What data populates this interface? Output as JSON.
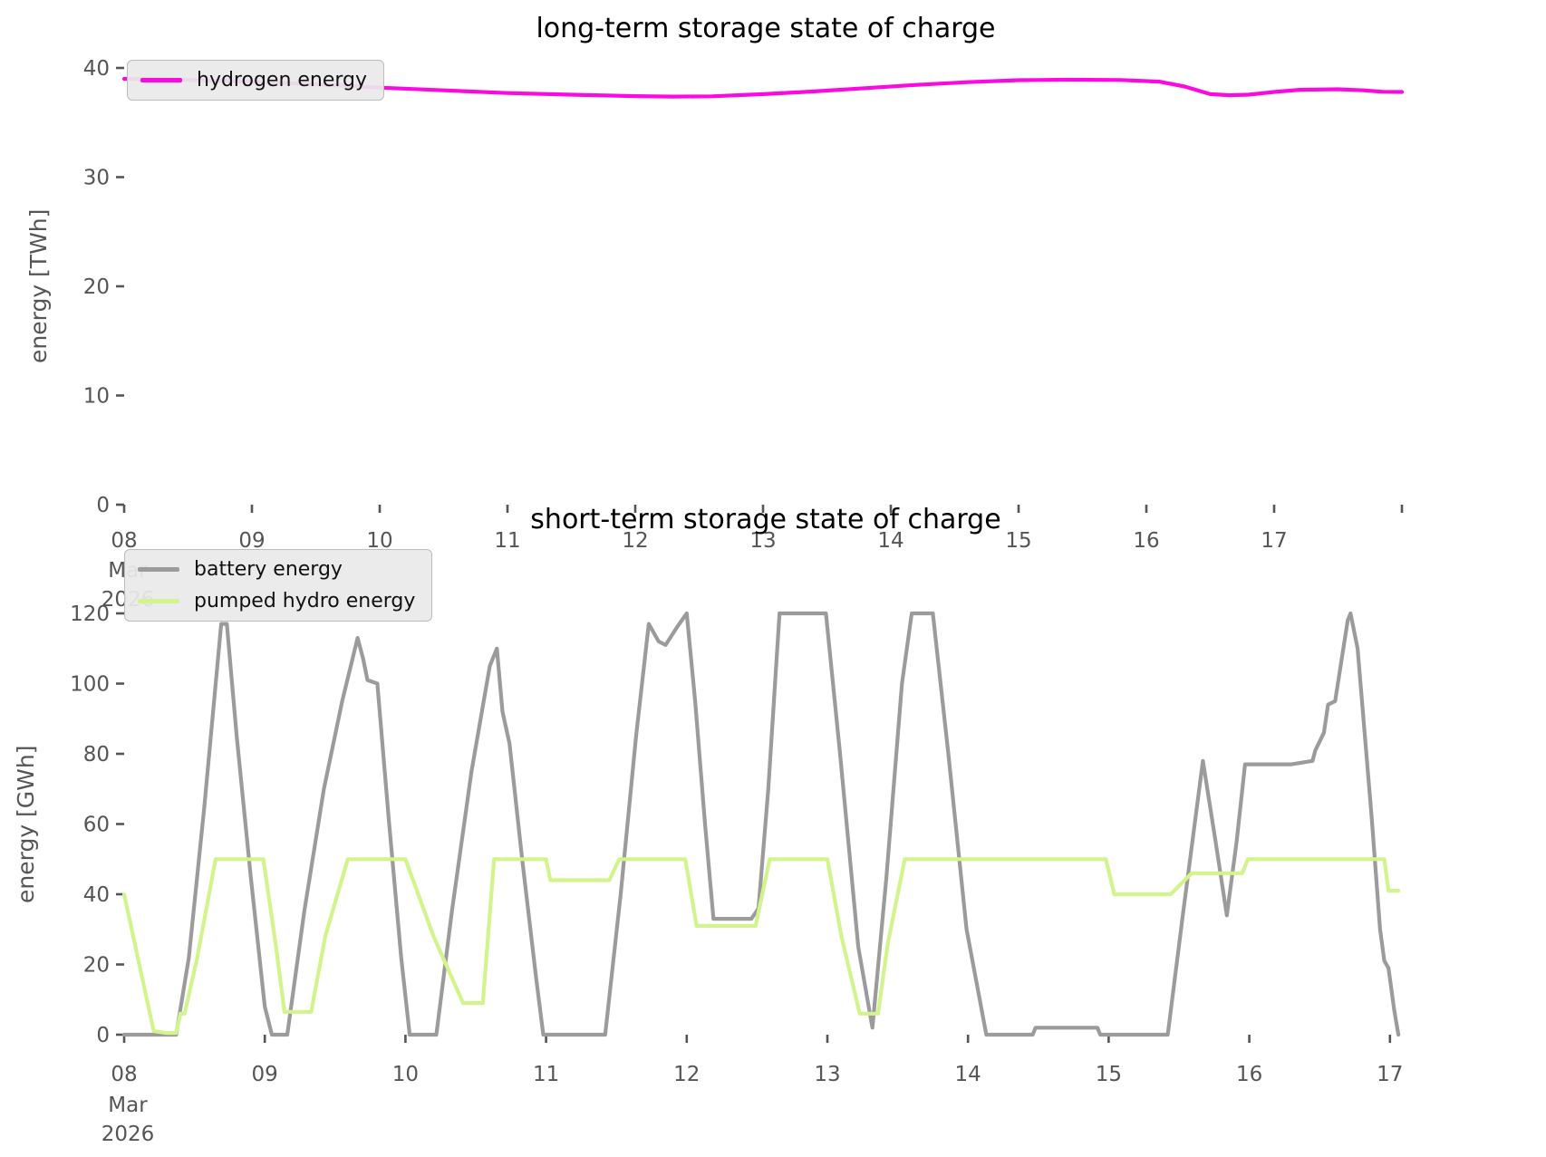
{
  "figure": {
    "background": "#ffffff"
  },
  "chart_data": [
    {
      "type": "line",
      "title": "long-term storage state of charge",
      "ylabel": "energy [TWh]",
      "yticks": [
        0,
        10,
        20,
        30,
        40
      ],
      "ylim": [
        0,
        41.7
      ],
      "xtick_labels": [
        "08",
        "09",
        "10",
        "11",
        "12",
        "13",
        "14",
        "15",
        "16",
        "17"
      ],
      "x_first_tick_sublabels": [
        "Mar",
        "2026"
      ],
      "xlim_days": [
        0,
        10.05
      ],
      "grid": false,
      "legend_position": "upper left",
      "series": [
        {
          "name": "hydrogen energy",
          "color": "#fa0ae0",
          "points": [
            [
              0,
              39.0
            ],
            [
              0.5,
              38.9
            ],
            [
              1.0,
              38.75
            ],
            [
              1.5,
              38.5
            ],
            [
              2.0,
              38.2
            ],
            [
              2.5,
              37.95
            ],
            [
              3.0,
              37.7
            ],
            [
              3.5,
              37.55
            ],
            [
              4.0,
              37.42
            ],
            [
              4.3,
              37.38
            ],
            [
              4.6,
              37.4
            ],
            [
              5.0,
              37.6
            ],
            [
              5.4,
              37.85
            ],
            [
              5.8,
              38.15
            ],
            [
              6.2,
              38.45
            ],
            [
              6.6,
              38.7
            ],
            [
              7.0,
              38.88
            ],
            [
              7.4,
              38.92
            ],
            [
              7.8,
              38.9
            ],
            [
              8.1,
              38.75
            ],
            [
              8.3,
              38.3
            ],
            [
              8.5,
              37.6
            ],
            [
              8.65,
              37.5
            ],
            [
              8.8,
              37.55
            ],
            [
              9.0,
              37.8
            ],
            [
              9.2,
              38.0
            ],
            [
              9.5,
              38.05
            ],
            [
              9.7,
              37.95
            ],
            [
              9.85,
              37.82
            ],
            [
              10.0,
              37.8
            ]
          ]
        }
      ]
    },
    {
      "type": "line",
      "title": "short-term storage state of charge",
      "ylabel": "energy [GWh]",
      "yticks": [
        0,
        20,
        40,
        60,
        80,
        100,
        120
      ],
      "ylim": [
        0,
        128
      ],
      "xtick_labels": [
        "08",
        "09",
        "10",
        "11",
        "12",
        "13",
        "14",
        "15",
        "16",
        "17"
      ],
      "x_first_tick_sublabels": [
        "Mar",
        "2026"
      ],
      "xlim_days": [
        0,
        9.08
      ],
      "grid": false,
      "legend_position": "upper left",
      "series": [
        {
          "name": "battery energy",
          "color": "#9b9b9b",
          "points": [
            [
              0,
              0
            ],
            [
              0.37,
              0
            ],
            [
              0.46,
              22
            ],
            [
              0.57,
              65
            ],
            [
              0.69,
              117
            ],
            [
              0.73,
              117
            ],
            [
              0.8,
              85
            ],
            [
              0.9,
              45
            ],
            [
              1.0,
              8
            ],
            [
              1.05,
              0
            ],
            [
              1.16,
              0
            ],
            [
              1.28,
              35
            ],
            [
              1.42,
              70
            ],
            [
              1.55,
              95
            ],
            [
              1.66,
              113
            ],
            [
              1.7,
              107
            ],
            [
              1.73,
              101
            ],
            [
              1.8,
              100
            ],
            [
              1.88,
              62
            ],
            [
              1.97,
              22
            ],
            [
              2.03,
              0
            ],
            [
              2.22,
              0
            ],
            [
              2.33,
              35
            ],
            [
              2.47,
              75
            ],
            [
              2.6,
              105
            ],
            [
              2.65,
              110
            ],
            [
              2.69,
              92
            ],
            [
              2.74,
              83
            ],
            [
              2.83,
              50
            ],
            [
              2.93,
              16
            ],
            [
              2.98,
              0
            ],
            [
              3.42,
              0
            ],
            [
              3.53,
              40
            ],
            [
              3.64,
              85
            ],
            [
              3.73,
              117
            ],
            [
              3.8,
              112
            ],
            [
              3.85,
              111
            ],
            [
              3.93,
              116
            ],
            [
              4.0,
              120
            ],
            [
              4.06,
              95
            ],
            [
              4.13,
              60
            ],
            [
              4.19,
              33
            ],
            [
              4.46,
              33
            ],
            [
              4.51,
              36
            ],
            [
              4.58,
              70
            ],
            [
              4.66,
              120
            ],
            [
              4.99,
              120
            ],
            [
              5.09,
              80
            ],
            [
              5.22,
              25
            ],
            [
              5.32,
              2
            ],
            [
              5.42,
              45
            ],
            [
              5.53,
              100
            ],
            [
              5.6,
              120
            ],
            [
              5.75,
              120
            ],
            [
              5.86,
              80
            ],
            [
              5.99,
              30
            ],
            [
              6.13,
              0
            ],
            [
              6.46,
              0
            ],
            [
              6.48,
              2
            ],
            [
              6.92,
              2
            ],
            [
              6.94,
              0
            ],
            [
              7.42,
              0
            ],
            [
              7.53,
              35
            ],
            [
              7.67,
              78
            ],
            [
              7.76,
              55
            ],
            [
              7.84,
              34
            ],
            [
              7.91,
              55
            ],
            [
              7.97,
              77
            ],
            [
              8.3,
              77
            ],
            [
              8.45,
              78
            ],
            [
              8.47,
              81
            ],
            [
              8.53,
              86
            ],
            [
              8.56,
              94
            ],
            [
              8.61,
              95
            ],
            [
              8.7,
              118
            ],
            [
              8.72,
              120
            ],
            [
              8.77,
              110
            ],
            [
              8.87,
              62
            ],
            [
              8.93,
              30
            ],
            [
              8.96,
              21
            ],
            [
              8.99,
              19
            ],
            [
              9.03,
              7
            ],
            [
              9.06,
              0
            ]
          ]
        },
        {
          "name": "pumped hydro energy",
          "color": "#d2f48c",
          "points": [
            [
              0,
              40
            ],
            [
              0.21,
              1
            ],
            [
              0.3,
              0.5
            ],
            [
              0.37,
              0.5
            ],
            [
              0.4,
              6
            ],
            [
              0.43,
              6
            ],
            [
              0.52,
              22
            ],
            [
              0.65,
              50
            ],
            [
              0.99,
              50
            ],
            [
              1.08,
              25
            ],
            [
              1.14,
              6.5
            ],
            [
              1.33,
              6.5
            ],
            [
              1.43,
              28
            ],
            [
              1.59,
              50
            ],
            [
              2.0,
              50
            ],
            [
              2.2,
              28
            ],
            [
              2.41,
              9
            ],
            [
              2.55,
              9
            ],
            [
              2.63,
              50
            ],
            [
              3.0,
              50
            ],
            [
              3.03,
              44
            ],
            [
              3.45,
              44
            ],
            [
              3.52,
              50
            ],
            [
              3.99,
              50
            ],
            [
              4.07,
              31
            ],
            [
              4.49,
              31
            ],
            [
              4.59,
              50
            ],
            [
              5.0,
              50
            ],
            [
              5.1,
              28
            ],
            [
              5.23,
              6
            ],
            [
              5.36,
              6
            ],
            [
              5.43,
              26
            ],
            [
              5.55,
              50
            ],
            [
              6.98,
              50
            ],
            [
              7.04,
              40
            ],
            [
              7.44,
              40
            ],
            [
              7.59,
              46
            ],
            [
              7.95,
              46
            ],
            [
              7.99,
              50
            ],
            [
              8.96,
              50
            ],
            [
              8.99,
              41
            ],
            [
              9.06,
              41
            ]
          ]
        }
      ]
    }
  ],
  "axis_style": {
    "tick_color": "#555555",
    "label_color": "#555555",
    "title_color": "#000000"
  }
}
